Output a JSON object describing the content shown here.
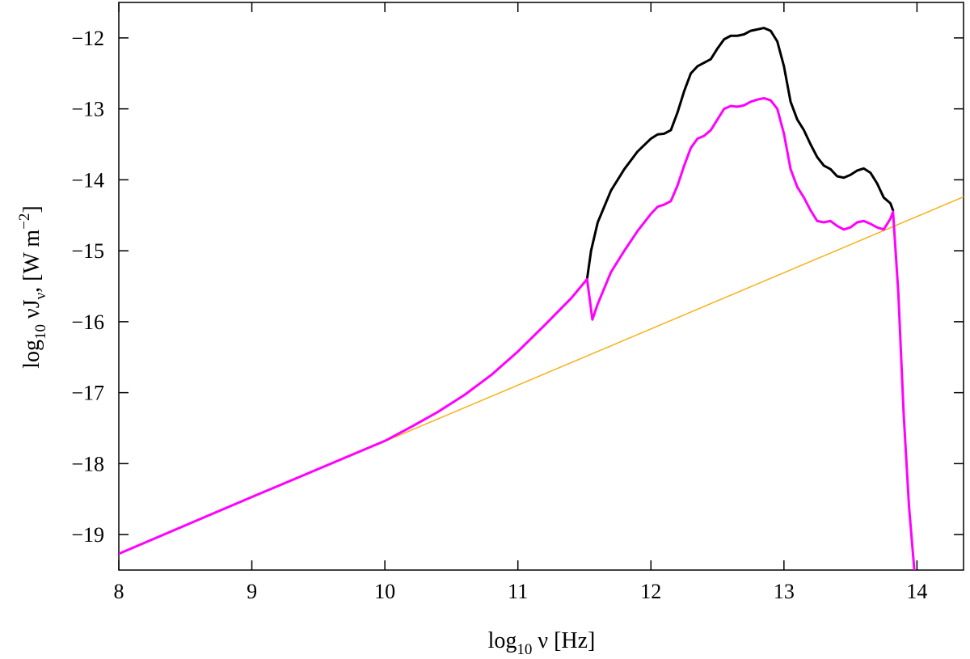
{
  "chart_data": {
    "type": "line",
    "title": "",
    "xlabel": {
      "main": "log",
      "sub": "10",
      "rest": " ν [Hz]"
    },
    "ylabel": {
      "main": "log",
      "sub": "10",
      "mid": " νJ",
      "sub2": "ν",
      "rest": ", [W m",
      "sup": "−2",
      "end": "]"
    },
    "xlim": [
      8,
      14.35
    ],
    "ylim": [
      -19.5,
      -11.5
    ],
    "xticks": [
      8,
      9,
      10,
      11,
      12,
      13,
      14
    ],
    "yticks": [
      -19,
      -18,
      -17,
      -16,
      -15,
      -14,
      -13,
      -12
    ],
    "ytick_labels": [
      "−19",
      "−18",
      "−17",
      "−16",
      "−15",
      "−14",
      "−13",
      "−12"
    ],
    "grid": false,
    "series": [
      {
        "color": "#f5b21b",
        "width": 1.5,
        "x": [
          8,
          14.35
        ],
        "y": [
          -19.27,
          -14.24
        ]
      },
      {
        "color": "#000000",
        "width": 3,
        "x": [
          11.52,
          11.55,
          11.6,
          11.7,
          11.8,
          11.9,
          12.0,
          12.05,
          12.1,
          12.15,
          12.2,
          12.25,
          12.3,
          12.35,
          12.4,
          12.45,
          12.5,
          12.55,
          12.6,
          12.65,
          12.7,
          12.75,
          12.8,
          12.85,
          12.9,
          12.95,
          13.0,
          13.05,
          13.1,
          13.15,
          13.2,
          13.25,
          13.3,
          13.35,
          13.4,
          13.45,
          13.5,
          13.55,
          13.6,
          13.65,
          13.7,
          13.75,
          13.8,
          13.82
        ],
        "y": [
          -15.4,
          -15.0,
          -14.6,
          -14.15,
          -13.85,
          -13.6,
          -13.42,
          -13.36,
          -13.35,
          -13.3,
          -13.05,
          -12.75,
          -12.5,
          -12.4,
          -12.35,
          -12.3,
          -12.15,
          -12.02,
          -11.97,
          -11.97,
          -11.95,
          -11.9,
          -11.88,
          -11.86,
          -11.9,
          -12.05,
          -12.4,
          -12.9,
          -13.15,
          -13.3,
          -13.5,
          -13.68,
          -13.8,
          -13.85,
          -13.95,
          -13.97,
          -13.93,
          -13.87,
          -13.84,
          -13.9,
          -14.05,
          -14.25,
          -14.33,
          -14.43
        ]
      },
      {
        "color": "#ff00ff",
        "width": 3,
        "x": [
          8,
          9,
          10,
          10.2,
          10.4,
          10.6,
          10.8,
          11.0,
          11.2,
          11.4,
          11.52,
          11.56,
          11.6,
          11.7,
          11.8,
          11.9,
          12.0,
          12.05,
          12.1,
          12.15,
          12.2,
          12.25,
          12.3,
          12.35,
          12.4,
          12.45,
          12.5,
          12.55,
          12.6,
          12.65,
          12.7,
          12.75,
          12.8,
          12.85,
          12.9,
          12.95,
          13.0,
          13.05,
          13.1,
          13.15,
          13.2,
          13.25,
          13.3,
          13.35,
          13.4,
          13.45,
          13.5,
          13.55,
          13.6,
          13.65,
          13.7,
          13.75,
          13.8,
          13.82,
          13.86,
          13.9,
          13.94,
          13.98
        ],
        "y": [
          -19.27,
          -18.47,
          -17.68,
          -17.48,
          -17.27,
          -17.03,
          -16.75,
          -16.42,
          -16.05,
          -15.67,
          -15.4,
          -15.97,
          -15.75,
          -15.3,
          -15.0,
          -14.72,
          -14.48,
          -14.38,
          -14.35,
          -14.3,
          -14.08,
          -13.8,
          -13.55,
          -13.42,
          -13.38,
          -13.3,
          -13.15,
          -13.0,
          -12.96,
          -12.97,
          -12.95,
          -12.9,
          -12.87,
          -12.85,
          -12.88,
          -13.0,
          -13.35,
          -13.85,
          -14.1,
          -14.25,
          -14.43,
          -14.58,
          -14.6,
          -14.58,
          -14.65,
          -14.7,
          -14.67,
          -14.6,
          -14.58,
          -14.62,
          -14.67,
          -14.7,
          -14.55,
          -14.45,
          -15.6,
          -17.3,
          -18.6,
          -19.5
        ]
      }
    ]
  }
}
